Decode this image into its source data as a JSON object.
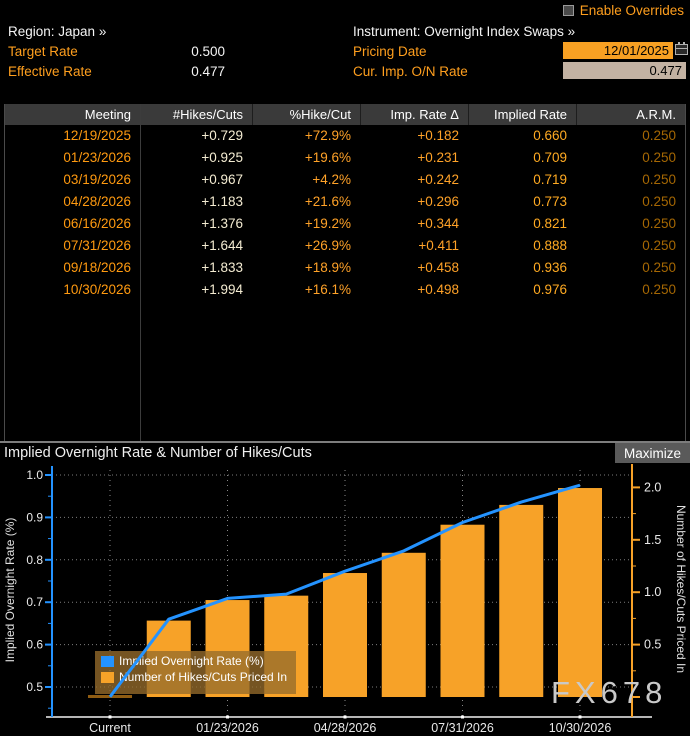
{
  "header": {
    "enable_overrides_label": "Enable Overrides",
    "region_label": "Region: Japan »",
    "instrument_label": "Instrument: Overnight Index Swaps »",
    "target_rate": {
      "label": "Target Rate",
      "value": "0.500"
    },
    "effective_rate": {
      "label": "Effective Rate",
      "value": "0.477"
    },
    "pricing_date": {
      "label": "Pricing Date",
      "value": "12/01/2025"
    },
    "cur_imp_rate": {
      "label": "Cur. Imp. O/N Rate",
      "value": "0.477"
    }
  },
  "table": {
    "columns": [
      "Meeting",
      "#Hikes/Cuts",
      "%Hike/Cut",
      "Imp. Rate Δ",
      "Implied Rate",
      "A.R.M."
    ],
    "rows": [
      [
        "12/19/2025",
        "+0.729",
        "+72.9%",
        "+0.182",
        "0.660",
        "0.250"
      ],
      [
        "01/23/2026",
        "+0.925",
        "+19.6%",
        "+0.231",
        "0.709",
        "0.250"
      ],
      [
        "03/19/2026",
        "+0.967",
        "+4.2%",
        "+0.242",
        "0.719",
        "0.250"
      ],
      [
        "04/28/2026",
        "+1.183",
        "+21.6%",
        "+0.296",
        "0.773",
        "0.250"
      ],
      [
        "06/16/2026",
        "+1.376",
        "+19.2%",
        "+0.344",
        "0.821",
        "0.250"
      ],
      [
        "07/31/2026",
        "+1.644",
        "+26.9%",
        "+0.411",
        "0.888",
        "0.250"
      ],
      [
        "09/18/2026",
        "+1.833",
        "+18.9%",
        "+0.458",
        "0.936",
        "0.250"
      ],
      [
        "10/30/2026",
        "+1.994",
        "+16.1%",
        "+0.498",
        "0.976",
        "0.250"
      ]
    ]
  },
  "chart": {
    "title": "Implied Overnight Rate & Number of Hikes/Cuts",
    "maximize_label": "Maximize",
    "watermark": "FX678"
  },
  "chart_data": {
    "type": "bar+line",
    "title": "Implied Overnight Rate & Number of Hikes/Cuts",
    "x_categories": [
      "Current",
      "12/19/2025",
      "01/23/2026",
      "03/19/2026",
      "04/28/2026",
      "06/16/2026",
      "07/31/2026",
      "09/18/2026",
      "10/30/2026"
    ],
    "labeled_indices": [
      0,
      2,
      4,
      6,
      8
    ],
    "x_axis_labels": [
      "Current",
      "01/23/2026",
      "04/28/2026",
      "07/31/2026",
      "10/30/2026"
    ],
    "series": [
      {
        "name": "Implied Overnight Rate (%)",
        "type": "line",
        "axis": "left",
        "color": "#2493ff",
        "values": [
          0.477,
          0.66,
          0.709,
          0.719,
          0.773,
          0.821,
          0.888,
          0.936,
          0.976
        ]
      },
      {
        "name": "Number of Hikes/Cuts Priced In",
        "type": "bar",
        "axis": "right",
        "color": "#f7a228",
        "values": [
          0.0,
          0.729,
          0.925,
          0.967,
          1.183,
          1.376,
          1.644,
          1.833,
          1.994
        ]
      }
    ],
    "left_axis": {
      "label": "Implied Overnight Rate (%)",
      "ticks": [
        0.5,
        0.6,
        0.7,
        0.8,
        0.9,
        1.0
      ],
      "minor_step": 0.05,
      "range": [
        0.43,
        1.0
      ],
      "color": "#2493ff"
    },
    "right_axis": {
      "label": "Number of Hikes/Cuts Priced In",
      "ticks": [
        0.5,
        1.0,
        1.5,
        2.0
      ],
      "minor_step": 0.25,
      "range": [
        0.0,
        2.25
      ],
      "color": "#f7a228"
    },
    "grid": "dotted",
    "legend_position": "bottom-left",
    "watermark": "FX678"
  },
  "colors": {
    "amber_label": "#ff9f1e",
    "white_text": "#f5f5f5",
    "table_header_bg": "#3a3a3a",
    "meeting_col": "#ff9a10",
    "hikes_col": "#f4ecd2",
    "arm_col": "#a56703",
    "bar": "#f7a228",
    "line": "#2493ff",
    "pricing_field_bg": "#f7a023",
    "rate_field_bg": "#c3b2a2",
    "legend_bg": "rgba(150,108,44,0.78)",
    "current_marker": "#8f5c12",
    "watermark": "#c9c9c9",
    "maximize_bg": "#5a5a5a"
  }
}
